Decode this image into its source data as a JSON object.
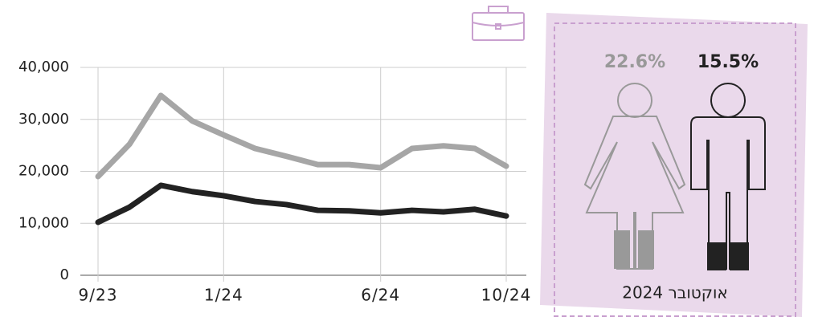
{
  "chart_data": {
    "type": "line",
    "categories": [
      "9/23",
      null,
      null,
      null,
      "1/24",
      null,
      null,
      null,
      null,
      "6/24",
      null,
      null,
      null,
      "10/24"
    ],
    "series": [
      {
        "color": "#a6a6a6",
        "values": [
          19000,
          25200,
          34600,
          29700,
          27000,
          24400,
          22900,
          21300,
          21300,
          20700,
          24400,
          24900,
          24400,
          21000
        ]
      },
      {
        "color": "#222222",
        "values": [
          10200,
          13100,
          17300,
          16100,
          15300,
          14200,
          13600,
          12500,
          12400,
          12000,
          12500,
          12200,
          12700,
          11400
        ]
      }
    ],
    "ylim": [
      0,
      40000
    ],
    "yticks": [
      0,
      {
        "value": 10000,
        "label": "10,000"
      },
      {
        "value": 20000,
        "label": "20,000"
      },
      {
        "value": 30000,
        "label": "30,000"
      },
      {
        "value": 40000,
        "label": "40,000"
      }
    ],
    "grid": true
  },
  "panel": {
    "women": "22.6%",
    "men": "15.5%",
    "caption": "אוקטובר 2024"
  }
}
